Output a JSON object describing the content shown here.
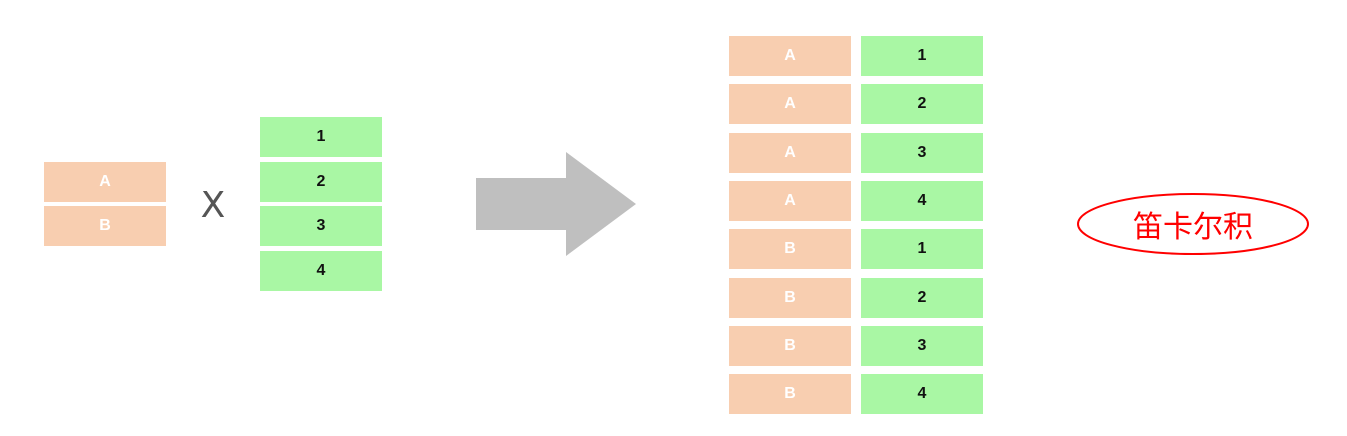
{
  "set_a": [
    "A",
    "B"
  ],
  "set_b": [
    "1",
    "2",
    "3",
    "4"
  ],
  "operator": "X",
  "result": [
    [
      "A",
      "1"
    ],
    [
      "A",
      "2"
    ],
    [
      "A",
      "3"
    ],
    [
      "A",
      "4"
    ],
    [
      "B",
      "1"
    ],
    [
      "B",
      "2"
    ],
    [
      "B",
      "3"
    ],
    [
      "B",
      "4"
    ]
  ],
  "label": "笛卡尔积",
  "colors": {
    "letter_fill": "#f8ceb0",
    "number_fill": "#a9f7a4",
    "arrow": "#bfbfbf",
    "label_stroke": "#ff0000"
  }
}
